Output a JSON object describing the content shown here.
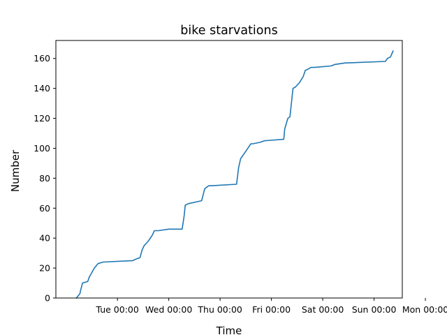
{
  "chart_data": {
    "type": "line",
    "title": "bike starvations",
    "xlabel": "Time",
    "ylabel": "Number",
    "x_unit": "days",
    "xlim": [
      -0.2,
      6.55
    ],
    "ylim": [
      0,
      172
    ],
    "x_ticks": [
      {
        "value": 1,
        "label": "Tue 00:00"
      },
      {
        "value": 2,
        "label": "Wed 00:00"
      },
      {
        "value": 3,
        "label": "Thu 00:00"
      },
      {
        "value": 4,
        "label": "Fri 00:00"
      },
      {
        "value": 5,
        "label": "Sat 00:00"
      },
      {
        "value": 6,
        "label": "Sun 00:00"
      },
      {
        "value": 7,
        "label": "Mon 00:00"
      }
    ],
    "y_ticks": [
      0,
      20,
      40,
      60,
      80,
      100,
      120,
      140,
      160
    ],
    "grid": false,
    "line_color": "#1f77b4",
    "series": [
      {
        "x": [
          0.2,
          0.27,
          0.28,
          0.32,
          0.42,
          0.45,
          0.55,
          0.62,
          0.72,
          1.3,
          1.36,
          1.44,
          1.48,
          1.52,
          1.6,
          1.68,
          1.72,
          1.8,
          2.0,
          2.26,
          2.3,
          2.32,
          2.38,
          2.64,
          2.7,
          2.74,
          2.78,
          2.84,
          3.32,
          3.36,
          3.4,
          3.52,
          3.6,
          3.64,
          3.78,
          3.86,
          4.24,
          4.26,
          4.32,
          4.36,
          4.42,
          4.47,
          4.55,
          4.62,
          4.66,
          4.72,
          4.77,
          4.84,
          5.16,
          5.24,
          5.44,
          6.22,
          6.26,
          6.32,
          6.37
        ],
        "y": [
          0,
          3,
          5,
          10,
          11,
          14,
          20,
          23,
          24,
          25,
          26,
          27,
          32,
          35,
          38,
          42,
          45,
          45,
          46,
          46,
          55,
          62,
          63,
          65,
          73,
          74,
          75,
          75,
          76,
          87,
          93,
          99,
          103,
          103,
          104,
          105,
          106,
          113,
          120,
          121,
          140,
          141,
          144,
          148,
          152,
          153,
          154,
          154,
          155,
          156,
          157,
          158,
          160,
          161,
          165
        ]
      }
    ]
  }
}
